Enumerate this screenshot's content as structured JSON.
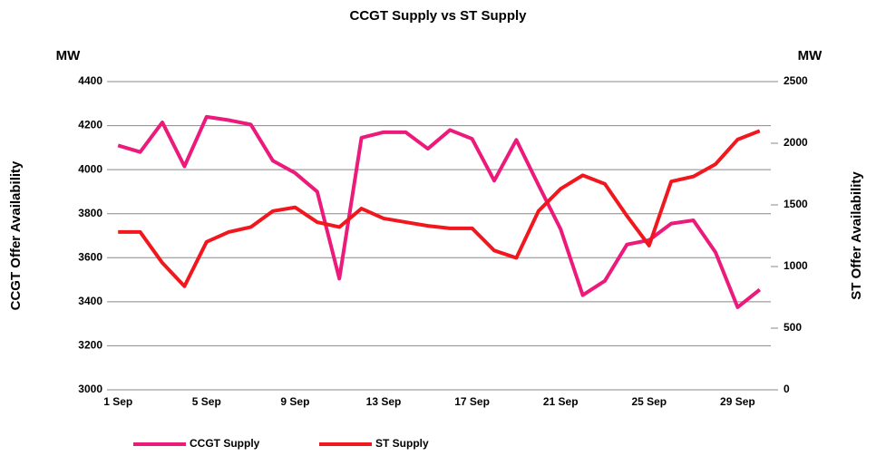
{
  "chart_data": {
    "type": "line",
    "title": "CCGT Supply vs ST Supply",
    "ylabel": "CCGT Offer Availability",
    "y2label": "ST Offer Availability",
    "yunit": "MW",
    "y2unit": "MW",
    "categories": [
      "1 Sep",
      null,
      null,
      null,
      "5 Sep",
      null,
      null,
      null,
      "9 Sep",
      null,
      null,
      null,
      "13 Sep",
      null,
      null,
      null,
      "17 Sep",
      null,
      null,
      null,
      "21 Sep",
      null,
      null,
      null,
      "25 Sep",
      null,
      null,
      null,
      "29 Sep",
      null
    ],
    "series": [
      {
        "name": "CCGT Supply",
        "color": "#ec1a7a",
        "axis": "y",
        "values": [
          4110,
          4080,
          4215,
          4015,
          4240,
          4225,
          4205,
          4040,
          3985,
          3900,
          3505,
          4145,
          4170,
          4170,
          4095,
          4180,
          4140,
          3950,
          4135,
          3930,
          3730,
          3430,
          3495,
          3660,
          3680,
          3755,
          3770,
          3625,
          3375,
          3455
        ]
      },
      {
        "name": "ST Supply",
        "color": "#f0181e",
        "axis": "y2",
        "values": [
          1280,
          1280,
          1030,
          840,
          1200,
          1280,
          1320,
          1450,
          1480,
          1360,
          1320,
          1470,
          1390,
          1360,
          1330,
          1310,
          1310,
          1130,
          1070,
          1450,
          1630,
          1740,
          1670,
          1410,
          1170,
          1690,
          1730,
          1830,
          2030,
          2100
        ]
      }
    ],
    "ylim": [
      3000,
      4400
    ],
    "yticks": [
      3000,
      3200,
      3400,
      3600,
      3800,
      4000,
      4200,
      4400
    ],
    "y2lim": [
      0,
      2500
    ],
    "y2ticks": [
      0,
      500,
      1000,
      1500,
      2000,
      2500
    ],
    "grid": true,
    "legend": "bottom"
  }
}
